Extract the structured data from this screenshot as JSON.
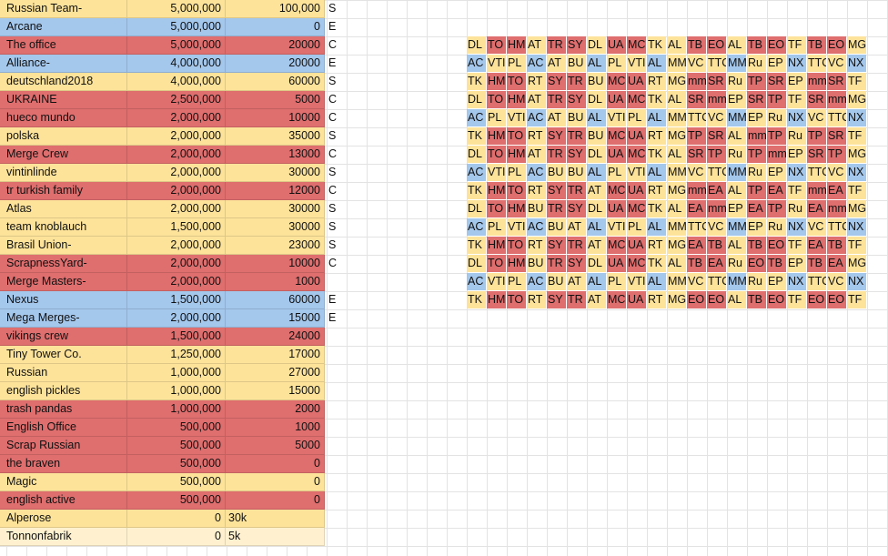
{
  "colors": {
    "yellow": "#fde39a",
    "blue": "#a4c7ec",
    "red": "#df6e6e",
    "light": "#fff1cf"
  },
  "left_table": [
    {
      "name": "Russian Team-",
      "amount": "5,000,000",
      "target": "100,000",
      "tag": "S",
      "color": "yellow"
    },
    {
      "name": "Arcane",
      "amount": "5,000,000",
      "target": "0",
      "tag": "E",
      "color": "blue"
    },
    {
      "name": "The office",
      "amount": "5,000,000",
      "target": "20000",
      "tag": "C",
      "color": "red"
    },
    {
      "name": "Alliance-",
      "amount": "4,000,000",
      "target": "20000",
      "tag": "E",
      "color": "blue"
    },
    {
      "name": "deutschland2018",
      "amount": "4,000,000",
      "target": "60000",
      "tag": "S",
      "color": "yellow"
    },
    {
      "name": "UKRAINE",
      "amount": "2,500,000",
      "target": "5000",
      "tag": "C",
      "color": "red"
    },
    {
      "name": "hueco mundo",
      "amount": "2,000,000",
      "target": "10000",
      "tag": "C",
      "color": "red"
    },
    {
      "name": "polska",
      "amount": "2,000,000",
      "target": "35000",
      "tag": "S",
      "color": "yellow"
    },
    {
      "name": "Merge Crew",
      "amount": "2,000,000",
      "target": "13000",
      "tag": "C",
      "color": "red"
    },
    {
      "name": "vintinlinde",
      "amount": "2,000,000",
      "target": "30000",
      "tag": "S",
      "color": "yellow"
    },
    {
      "name": "tr turkish family",
      "amount": "2,000,000",
      "target": "12000",
      "tag": "C",
      "color": "red"
    },
    {
      "name": "Atlas",
      "amount": "2,000,000",
      "target": "30000",
      "tag": "S",
      "color": "yellow"
    },
    {
      "name": "team knoblauch",
      "amount": "1,500,000",
      "target": "30000",
      "tag": "S",
      "color": "yellow"
    },
    {
      "name": "Brasil Union-",
      "amount": "2,000,000",
      "target": "23000",
      "tag": "S",
      "color": "yellow"
    },
    {
      "name": "ScrapnessYard-",
      "amount": "2,000,000",
      "target": "10000",
      "tag": "C",
      "color": "red"
    },
    {
      "name": "Merge Masters-",
      "amount": "2,000,000",
      "target": "1000",
      "tag": "",
      "color": "red"
    },
    {
      "name": "Nexus",
      "amount": "1,500,000",
      "target": "60000",
      "tag": "E",
      "color": "blue"
    },
    {
      "name": "Mega Merges-",
      "amount": "2,000,000",
      "target": "15000",
      "tag": "E",
      "color": "blue"
    },
    {
      "name": "vikings crew",
      "amount": "1,500,000",
      "target": "24000",
      "tag": "",
      "color": "red"
    },
    {
      "name": "Tiny Tower Co.",
      "amount": "1,250,000",
      "target": "17000",
      "tag": "",
      "color": "yellow"
    },
    {
      "name": "Russian",
      "amount": "1,000,000",
      "target": "27000",
      "tag": "",
      "color": "yellow"
    },
    {
      "name": "english pickles",
      "amount": "1,000,000",
      "target": "15000",
      "tag": "",
      "color": "yellow"
    },
    {
      "name": "trash pandas",
      "amount": "1,000,000",
      "target": "2000",
      "tag": "",
      "color": "red"
    },
    {
      "name": "English Office",
      "amount": "500,000",
      "target": "1000",
      "tag": "",
      "color": "red"
    },
    {
      "name": "Scrap Russian",
      "amount": "500,000",
      "target": "5000",
      "tag": "",
      "color": "red"
    },
    {
      "name": "the braven",
      "amount": "500,000",
      "target": "0",
      "tag": "",
      "color": "red"
    },
    {
      "name": "Magic",
      "amount": "500,000",
      "target": "0",
      "tag": "",
      "color": "yellow"
    },
    {
      "name": "english active",
      "amount": "500,000",
      "target": "0",
      "tag": "",
      "color": "red"
    },
    {
      "name": "Alperose",
      "amount": "0",
      "target": "30k",
      "tag": "",
      "color": "yellow"
    },
    {
      "name": "Tonnonfabrik",
      "amount": "0",
      "target": "5k",
      "tag": "",
      "color": "light"
    }
  ],
  "right_grid": [
    [
      "DL",
      "TO",
      "HM",
      "AT",
      "TR",
      "SY",
      "DL",
      "UA",
      "MC",
      "TK",
      "AL",
      "TB",
      "EO",
      "AL",
      "TB",
      "EO",
      "TF",
      "TB",
      "EO",
      "MG"
    ],
    [
      "AC",
      "VTI",
      "PL",
      "AC",
      "AT",
      "BU",
      "AL",
      "PL",
      "VTI",
      "AL",
      "MM",
      "VC",
      "TTC",
      "MM",
      "Ru",
      "EP",
      "NX",
      "TTC",
      "VC",
      "NX"
    ],
    [
      "TK",
      "HM",
      "TO",
      "RT",
      "SY",
      "TR",
      "BU",
      "MC",
      "UA",
      "RT",
      "MG",
      "mm",
      "SR",
      "Ru",
      "TP",
      "SR",
      "EP",
      "mm",
      "SR",
      "TF"
    ],
    [
      "DL",
      "TO",
      "HM",
      "AT",
      "TR",
      "SY",
      "DL",
      "UA",
      "MC",
      "TK",
      "AL",
      "SR",
      "mm",
      "EP",
      "SR",
      "TP",
      "TF",
      "SR",
      "mm",
      "MG"
    ],
    [
      "AC",
      "PL",
      "VTI",
      "AC",
      "AT",
      "BU",
      "AL",
      "VTI",
      "PL",
      "AL",
      "MM",
      "TTC",
      "VC",
      "MM",
      "EP",
      "Ru",
      "NX",
      "VC",
      "TTC",
      "NX"
    ],
    [
      "TK",
      "HM",
      "TO",
      "RT",
      "SY",
      "TR",
      "BU",
      "MC",
      "UA",
      "RT",
      "MG",
      "TP",
      "SR",
      "AL",
      "mm",
      "TP",
      "Ru",
      "TP",
      "SR",
      "TF"
    ],
    [
      "DL",
      "TO",
      "HM",
      "AT",
      "TR",
      "SY",
      "DL",
      "UA",
      "MC",
      "TK",
      "AL",
      "SR",
      "TP",
      "Ru",
      "TP",
      "mm",
      "EP",
      "SR",
      "TP",
      "MG"
    ],
    [
      "AC",
      "VTI",
      "PL",
      "AC",
      "BU",
      "BU",
      "AL",
      "PL",
      "VTI",
      "AL",
      "MM",
      "VC",
      "TTC",
      "MM",
      "Ru",
      "EP",
      "NX",
      "TTC",
      "VC",
      "NX"
    ],
    [
      "TK",
      "HM",
      "TO",
      "RT",
      "SY",
      "TR",
      "AT",
      "MC",
      "UA",
      "RT",
      "MG",
      "mm",
      "EA",
      "AL",
      "TP",
      "EA",
      "TF",
      "mm",
      "EA",
      "TF"
    ],
    [
      "DL",
      "TO",
      "HM",
      "BU",
      "TR",
      "SY",
      "DL",
      "UA",
      "MC",
      "TK",
      "AL",
      "EA",
      "mm",
      "EP",
      "EA",
      "TP",
      "Ru",
      "EA",
      "mm",
      "MG"
    ],
    [
      "AC",
      "PL",
      "VTI",
      "AC",
      "BU",
      "AT",
      "AL",
      "VTI",
      "PL",
      "AL",
      "MM",
      "TTC",
      "VC",
      "MM",
      "EP",
      "Ru",
      "NX",
      "VC",
      "TTC",
      "NX"
    ],
    [
      "TK",
      "HM",
      "TO",
      "RT",
      "SY",
      "TR",
      "AT",
      "MC",
      "UA",
      "RT",
      "MG",
      "EA",
      "TB",
      "AL",
      "TB",
      "EO",
      "TF",
      "EA",
      "TB",
      "TF"
    ],
    [
      "DL",
      "TO",
      "HM",
      "BU",
      "TR",
      "SY",
      "DL",
      "UA",
      "MC",
      "TK",
      "AL",
      "TB",
      "EA",
      "Ru",
      "EO",
      "TB",
      "EP",
      "TB",
      "EA",
      "MG"
    ],
    [
      "AC",
      "VTI",
      "PL",
      "AC",
      "BU",
      "AT",
      "AL",
      "PL",
      "VTI",
      "AL",
      "MM",
      "VC",
      "TTC",
      "MM",
      "Ru",
      "EP",
      "NX",
      "TTC",
      "VC",
      "NX"
    ],
    [
      "TK",
      "HM",
      "TO",
      "RT",
      "SY",
      "TR",
      "AT",
      "MC",
      "UA",
      "RT",
      "MG",
      "EO",
      "EO",
      "AL",
      "TB",
      "EO",
      "TF",
      "EO",
      "EO",
      "TF"
    ]
  ],
  "grid_colors": [
    [
      "yellow",
      "red",
      "red",
      "yellow",
      "red",
      "red",
      "yellow",
      "red",
      "red",
      "yellow",
      "yellow",
      "red",
      "red",
      "yellow",
      "red",
      "red",
      "yellow",
      "red",
      "red",
      "yellow"
    ],
    [
      "blue",
      "yellow",
      "yellow",
      "blue",
      "yellow",
      "yellow",
      "blue",
      "yellow",
      "yellow",
      "blue",
      "yellow",
      "yellow",
      "yellow",
      "blue",
      "yellow",
      "yellow",
      "blue",
      "yellow",
      "yellow",
      "blue"
    ],
    [
      "yellow",
      "red",
      "red",
      "yellow",
      "red",
      "red",
      "yellow",
      "red",
      "red",
      "yellow",
      "yellow",
      "red",
      "red",
      "yellow",
      "red",
      "red",
      "yellow",
      "red",
      "red",
      "yellow"
    ],
    [
      "yellow",
      "red",
      "red",
      "yellow",
      "red",
      "red",
      "yellow",
      "red",
      "red",
      "yellow",
      "yellow",
      "red",
      "red",
      "yellow",
      "red",
      "red",
      "yellow",
      "red",
      "red",
      "yellow"
    ],
    [
      "blue",
      "yellow",
      "yellow",
      "blue",
      "yellow",
      "yellow",
      "blue",
      "yellow",
      "yellow",
      "blue",
      "yellow",
      "yellow",
      "yellow",
      "blue",
      "yellow",
      "yellow",
      "blue",
      "yellow",
      "yellow",
      "blue"
    ],
    [
      "yellow",
      "red",
      "red",
      "yellow",
      "red",
      "red",
      "yellow",
      "red",
      "red",
      "yellow",
      "yellow",
      "red",
      "red",
      "yellow",
      "red",
      "red",
      "yellow",
      "red",
      "red",
      "yellow"
    ],
    [
      "yellow",
      "red",
      "red",
      "yellow",
      "red",
      "red",
      "yellow",
      "red",
      "red",
      "yellow",
      "yellow",
      "red",
      "red",
      "yellow",
      "red",
      "red",
      "yellow",
      "red",
      "red",
      "yellow"
    ],
    [
      "blue",
      "yellow",
      "yellow",
      "blue",
      "yellow",
      "yellow",
      "blue",
      "yellow",
      "yellow",
      "blue",
      "yellow",
      "yellow",
      "yellow",
      "blue",
      "yellow",
      "yellow",
      "blue",
      "yellow",
      "yellow",
      "blue"
    ],
    [
      "yellow",
      "red",
      "red",
      "yellow",
      "red",
      "red",
      "yellow",
      "red",
      "red",
      "yellow",
      "yellow",
      "red",
      "red",
      "yellow",
      "red",
      "red",
      "yellow",
      "red",
      "red",
      "yellow"
    ],
    [
      "yellow",
      "red",
      "red",
      "yellow",
      "red",
      "red",
      "yellow",
      "red",
      "red",
      "yellow",
      "yellow",
      "red",
      "red",
      "yellow",
      "red",
      "red",
      "yellow",
      "red",
      "red",
      "yellow"
    ],
    [
      "blue",
      "yellow",
      "yellow",
      "blue",
      "yellow",
      "yellow",
      "blue",
      "yellow",
      "yellow",
      "blue",
      "yellow",
      "yellow",
      "yellow",
      "blue",
      "yellow",
      "yellow",
      "blue",
      "yellow",
      "yellow",
      "blue"
    ],
    [
      "yellow",
      "red",
      "red",
      "yellow",
      "red",
      "red",
      "yellow",
      "red",
      "red",
      "yellow",
      "yellow",
      "red",
      "red",
      "yellow",
      "red",
      "red",
      "yellow",
      "red",
      "red",
      "yellow"
    ],
    [
      "yellow",
      "red",
      "red",
      "yellow",
      "red",
      "red",
      "yellow",
      "red",
      "red",
      "yellow",
      "yellow",
      "red",
      "red",
      "yellow",
      "red",
      "red",
      "yellow",
      "red",
      "red",
      "yellow"
    ],
    [
      "blue",
      "yellow",
      "yellow",
      "blue",
      "yellow",
      "yellow",
      "blue",
      "yellow",
      "yellow",
      "blue",
      "yellow",
      "yellow",
      "yellow",
      "blue",
      "yellow",
      "yellow",
      "blue",
      "yellow",
      "yellow",
      "blue"
    ],
    [
      "yellow",
      "red",
      "red",
      "yellow",
      "red",
      "red",
      "yellow",
      "red",
      "red",
      "yellow",
      "yellow",
      "red",
      "red",
      "yellow",
      "red",
      "red",
      "yellow",
      "red",
      "red",
      "yellow"
    ]
  ]
}
